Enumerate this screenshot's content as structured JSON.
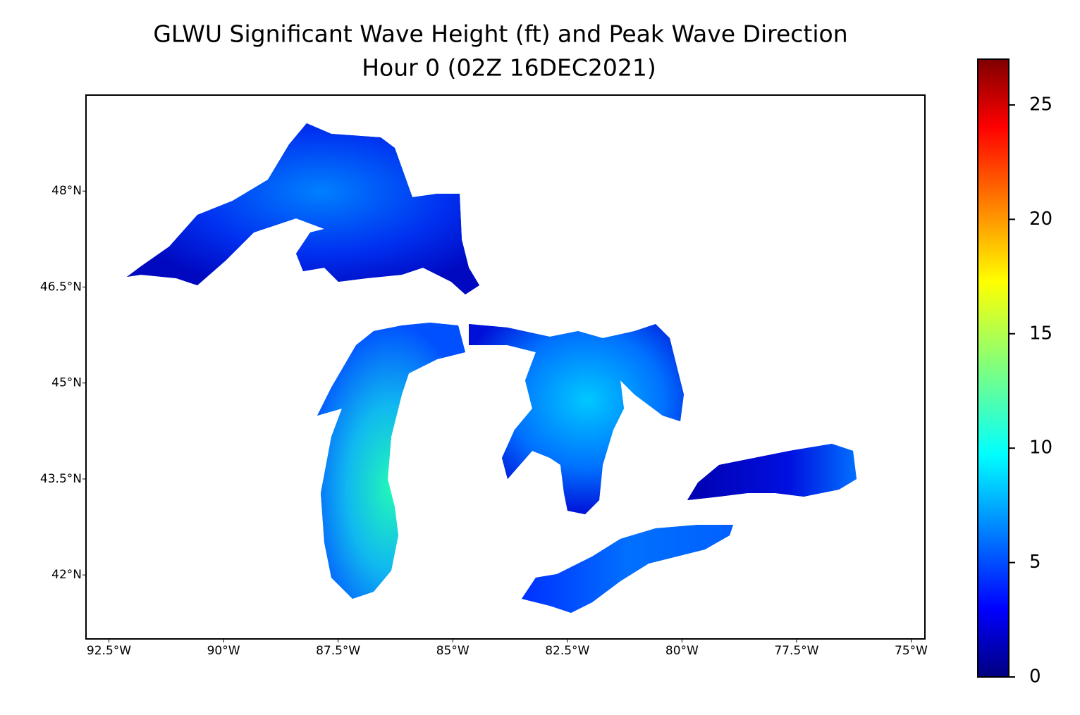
{
  "chart_data": {
    "type": "map",
    "title": "GLWU Significant Wave Height (ft) and Peak Wave Direction",
    "subtitle": "Hour 0 (02Z 16DEC2021)",
    "xlim": [
      -93.0,
      -74.7
    ],
    "ylim": [
      41.0,
      49.5
    ],
    "xticks": [
      {
        "value": -92.5,
        "label": "92.5°W"
      },
      {
        "value": -90,
        "label": "90°W"
      },
      {
        "value": -87.5,
        "label": "87.5°W"
      },
      {
        "value": -85,
        "label": "85°W"
      },
      {
        "value": -82.5,
        "label": "82.5°W"
      },
      {
        "value": -80,
        "label": "80°W"
      },
      {
        "value": -77.5,
        "label": "77.5°W"
      },
      {
        "value": -75,
        "label": "75°W"
      }
    ],
    "yticks": [
      {
        "value": 42,
        "label": "42°N"
      },
      {
        "value": 43.5,
        "label": "43.5°N"
      },
      {
        "value": 45,
        "label": "45°N"
      },
      {
        "value": 46.5,
        "label": "46.5°N"
      },
      {
        "value": 48,
        "label": "48°N"
      }
    ],
    "colorbar": {
      "clim": [
        0,
        27
      ],
      "ticks": [
        0,
        5,
        10,
        15,
        20,
        25
      ]
    }
  }
}
